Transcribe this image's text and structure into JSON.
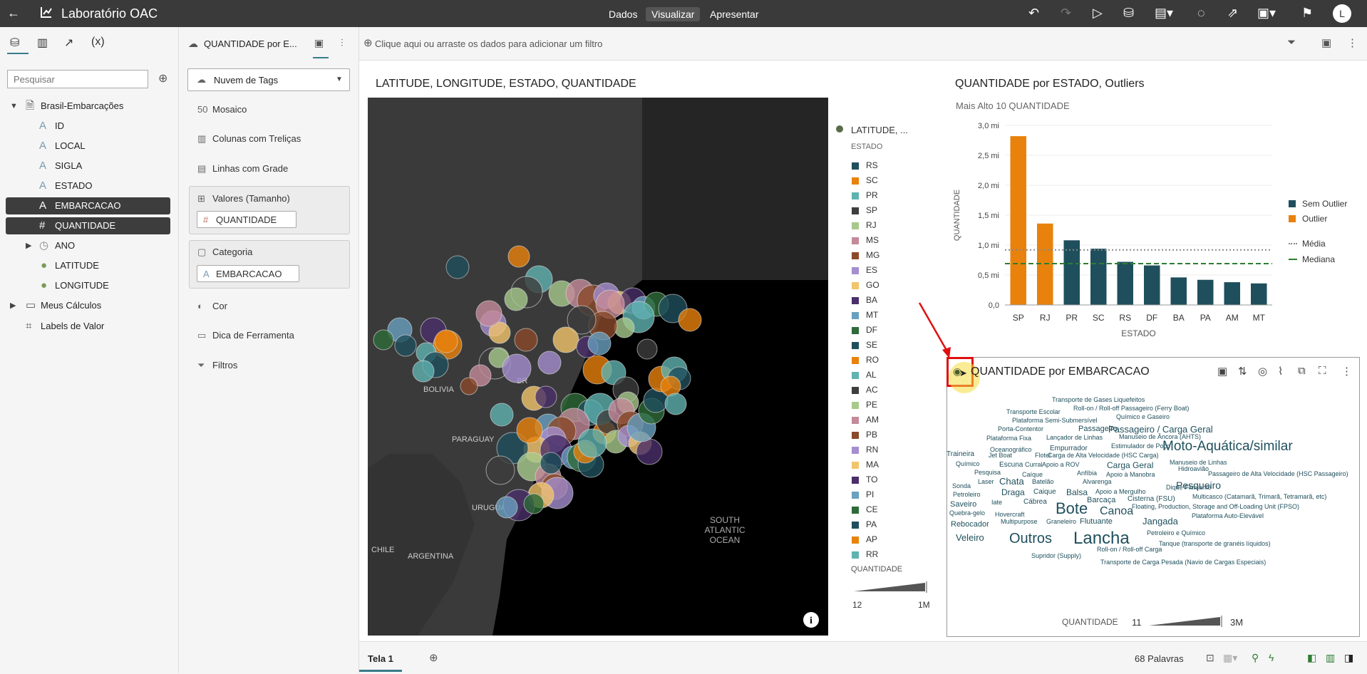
{
  "app": {
    "title": "Laboratório OAC",
    "modes": [
      "Dados",
      "Visualizar",
      "Apresentar"
    ],
    "user_initial": "L"
  },
  "left_panel": {
    "search_placeholder": "Pesquisar",
    "dataset": "Brasil-Embarcações",
    "columns": [
      {
        "label": "ID",
        "type": "text"
      },
      {
        "label": "LOCAL",
        "type": "text"
      },
      {
        "label": "SIGLA",
        "type": "text"
      },
      {
        "label": "ESTADO",
        "type": "text"
      },
      {
        "label": "EMBARCACAO",
        "type": "text",
        "selected": true
      },
      {
        "label": "QUANTIDADE",
        "type": "number",
        "selected": true
      },
      {
        "label": "ANO",
        "type": "time"
      },
      {
        "label": "LATITUDE",
        "type": "geo"
      },
      {
        "label": "LONGITUDE",
        "type": "geo"
      }
    ],
    "folders": [
      "Meus Cálculos",
      "Labels de Valor"
    ]
  },
  "grammar": {
    "viz_tab": "QUANTIDADE por E...",
    "viz_type": "Nuvem de Tags",
    "options": [
      "Mosaico",
      "Colunas com Treliças",
      "Linhas com Grade"
    ],
    "values_label": "Valores (Tamanho)",
    "values_field": "QUANTIDADE",
    "category_label": "Categoria",
    "category_field": "EMBARCACAO",
    "extras": [
      "Cor",
      "Dica de Ferramenta",
      "Filtros"
    ]
  },
  "filter_bar": {
    "placeholder": "Clique aqui ou arraste os dados para adicionar um filtro"
  },
  "map_viz": {
    "title": "LATITUDE, LONGITUDE, ESTADO, QUANTIDADE",
    "labels": {
      "bolivia": "BOLIVIA",
      "paraguay": "PARAGUAY",
      "uruguay": "URUGUAY",
      "chile": "CHILE",
      "argentina": "ARGENTINA",
      "ocean": [
        "SOUTH",
        "ATLANTIC",
        "OCEAN"
      ],
      "br": "BR"
    },
    "legend_title": "LATITUDE, ...",
    "legend_subtitle": "ESTADO",
    "states": [
      {
        "name": "RS",
        "color": "#1f4f5c"
      },
      {
        "name": "SC",
        "color": "#e8820c"
      },
      {
        "name": "PR",
        "color": "#5fb3b0"
      },
      {
        "name": "SP",
        "color": "#3d3d3d"
      },
      {
        "name": "RJ",
        "color": "#a8c98c"
      },
      {
        "name": "MS",
        "color": "#c48a9a"
      },
      {
        "name": "MG",
        "color": "#8a4a2a"
      },
      {
        "name": "ES",
        "color": "#a58ed0"
      },
      {
        "name": "GO",
        "color": "#f2c46c"
      },
      {
        "name": "BA",
        "color": "#4a2f6a"
      },
      {
        "name": "MT",
        "color": "#6aa0c0"
      },
      {
        "name": "DF",
        "color": "#2e6b3a"
      },
      {
        "name": "SE",
        "color": "#1f4f5c"
      },
      {
        "name": "RO",
        "color": "#e8820c"
      },
      {
        "name": "AL",
        "color": "#5fb3b0"
      },
      {
        "name": "AC",
        "color": "#3d3d3d"
      },
      {
        "name": "PE",
        "color": "#a8c98c"
      },
      {
        "name": "AM",
        "color": "#c48a9a"
      },
      {
        "name": "PB",
        "color": "#8a4a2a"
      },
      {
        "name": "RN",
        "color": "#a58ed0"
      },
      {
        "name": "MA",
        "color": "#f2c46c"
      },
      {
        "name": "TO",
        "color": "#4a2f6a"
      },
      {
        "name": "PI",
        "color": "#6aa0c0"
      },
      {
        "name": "CE",
        "color": "#2e6b3a"
      },
      {
        "name": "PA",
        "color": "#1f4f5c"
      },
      {
        "name": "AP",
        "color": "#e8820c"
      },
      {
        "name": "RR",
        "color": "#5fb3b0"
      }
    ],
    "size_legend": {
      "label": "QUANTIDADE",
      "min": "12",
      "max": "1M"
    }
  },
  "bar_viz": {
    "title": "QUANTIDADE por ESTADO, Outliers",
    "subtitle": "Mais Alto 10 QUANTIDADE",
    "legend": {
      "sem_outlier": "Sem Outlier",
      "outlier": "Outlier",
      "media": "Média",
      "mediana": "Mediana"
    }
  },
  "chart_data": {
    "type": "bar",
    "title": "QUANTIDADE por ESTADO, Outliers",
    "subtitle": "Mais Alto 10 QUANTIDADE",
    "xlabel": "ESTADO",
    "ylabel": "QUANTIDADE",
    "categories": [
      "SP",
      "RJ",
      "PR",
      "SC",
      "RS",
      "DF",
      "BA",
      "PA",
      "AM",
      "MT"
    ],
    "values": [
      2.82,
      1.36,
      1.08,
      0.94,
      0.72,
      0.66,
      0.46,
      0.42,
      0.38,
      0.36
    ],
    "outlier": [
      true,
      true,
      false,
      false,
      false,
      false,
      false,
      false,
      false,
      false
    ],
    "yticks": [
      "0,0",
      "0,5 mi",
      "1,0 mi",
      "1,5 mi",
      "2,0 mi",
      "2,5 mi",
      "3,0 mi"
    ],
    "ylim": [
      0,
      3.0
    ],
    "mean": 0.92,
    "median": 0.69,
    "colors": {
      "sem_outlier": "#1f4f5c",
      "outlier": "#e8820c",
      "media": "#888888",
      "mediana": "#2e7d32"
    },
    "legend_position": "right"
  },
  "cloud_viz": {
    "title": "QUANTIDADE por EMBARCACAO",
    "words": [
      "Transporte de Gases Liquefeitos",
      "Transporte Escolar",
      "Roll-on / Roll-off Passageiro (Ferry Boat)",
      "Plataforma Semi-Submersível",
      "Químico e Gaseiro",
      "Porta-Contentor",
      "Passageiro",
      "Passageiro / Carga Geral",
      "Plataforma Fixa",
      "Lançador de Linhas",
      "Manuseio de Âncora (AHTS)",
      "Oceanográfico",
      "Empurrador",
      "Estimulador de Poço",
      "Moto-Aquática/similar",
      "Traineira",
      "Jet Boat",
      "Flotel",
      "Carga de Alta Velocidade (HSC Carga)",
      "Manuseio de Linhas",
      "Químico",
      "Escuna",
      "Curral",
      "Apoio a ROV",
      "Carga Geral",
      "Hidroavião",
      "Pesquisa",
      "Caíque",
      "Anfíbia",
      "Apoio à Manobra",
      "Passageiro de Alta Velocidade (HSC Passageiro)",
      "Laser",
      "Chata",
      "Batelão",
      "Alvarenga",
      "Sonda",
      "Pesqueiro",
      "Petroleiro",
      "Draga",
      "Caique",
      "Balsa",
      "Apoio a Mergulho",
      "Dique Flutuante",
      "Iate",
      "Cábrea",
      "Barcaça",
      "Cisterna (FSU)",
      "Multicasco (Catamarã, Trimarã, Tetramarã, etc)",
      "Saveiro",
      "Bote",
      "Canoa",
      "Floating, Production, Storage and Off-Loading Unit (FPSO)",
      "Quebra-gelo",
      "Hovercraft",
      "Multipurpose",
      "Graneleiro",
      "Flutuante",
      "Jangada",
      "Plataforma Auto-Elevável",
      "Rebocador",
      "Veleiro",
      "Outros",
      "Lancha",
      "Petroleiro e Químico",
      "Tanque (transporte de granéis líquidos)",
      "Roll-on / Roll-off Carga",
      "Supridor (Supply)",
      "Transporte de Carga Pesada (Navio de Cargas Especiais)"
    ],
    "size_legend": {
      "label": "QUANTIDADE",
      "min": "11",
      "max": "3M"
    }
  },
  "bottom": {
    "tab": "Tela 1",
    "word_count": "68 Palavras"
  }
}
